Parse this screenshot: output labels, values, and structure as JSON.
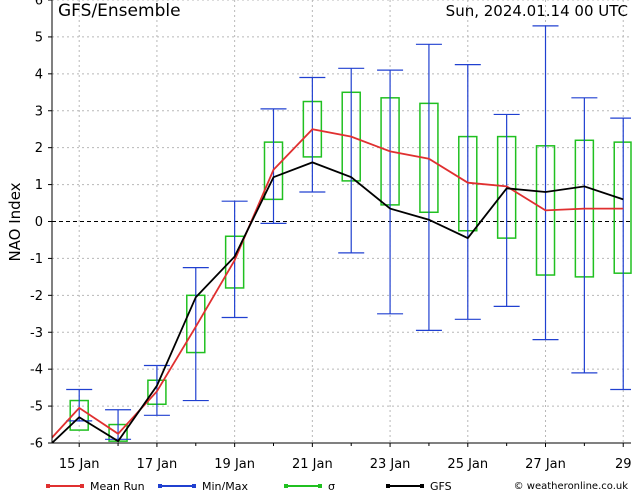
{
  "chart_data": {
    "type": "line",
    "title_left": "GFS/Ensemble",
    "title_right": "Sun, 2024.01.14   00 UTC",
    "ylabel": "NAO Index",
    "xlabel": "",
    "ylim": [
      -6,
      6
    ],
    "yticks": [
      -6,
      -5,
      -4,
      -3,
      -2,
      -1,
      0,
      1,
      2,
      3,
      4,
      5,
      6
    ],
    "xlim": [
      14.3,
      29.2
    ],
    "xticks": [
      {
        "x": 15,
        "label": "15 Jan"
      },
      {
        "x": 17,
        "label": "17 Jan"
      },
      {
        "x": 19,
        "label": "19 Jan"
      },
      {
        "x": 21,
        "label": "21 Jan"
      },
      {
        "x": 23,
        "label": "23 Jan"
      },
      {
        "x": 25,
        "label": "25 Jan"
      },
      {
        "x": 27,
        "label": "27 Jan"
      },
      {
        "x": 29,
        "label": "29"
      }
    ],
    "grid": true,
    "zero_line": "dashed",
    "x": [
      14,
      15,
      16,
      17,
      18,
      19,
      20,
      21,
      22,
      23,
      24,
      25,
      26,
      27,
      28,
      29
    ],
    "series": [
      {
        "name": "Mean Run",
        "color": "#e03030",
        "values": [
          -6.2,
          -5.05,
          -5.75,
          -4.6,
          -2.85,
          -1.05,
          1.4,
          2.5,
          2.3,
          1.9,
          1.7,
          1.05,
          0.95,
          0.3,
          0.35,
          0.35
        ]
      },
      {
        "name": "GFS",
        "color": "#000000",
        "values": [
          -6.3,
          -5.3,
          -5.95,
          -4.45,
          -2.05,
          -0.95,
          1.2,
          1.6,
          1.2,
          0.35,
          0.05,
          -0.45,
          0.9,
          0.8,
          0.95,
          0.6
        ]
      }
    ],
    "minmax": {
      "name": "Min/Max",
      "color": "#2040d0",
      "x": [
        15,
        16,
        17,
        18,
        19,
        20,
        21,
        22,
        23,
        24,
        25,
        26,
        27,
        28,
        29
      ],
      "min": [
        -5.4,
        -5.9,
        -5.25,
        -4.85,
        -2.6,
        -0.05,
        0.8,
        -0.85,
        -2.5,
        -2.95,
        -2.65,
        -2.3,
        -3.2,
        -4.1,
        -4.55
      ],
      "max": [
        -4.55,
        -5.1,
        -3.9,
        -1.25,
        0.55,
        3.05,
        3.9,
        4.15,
        4.1,
        4.8,
        4.25,
        2.9,
        5.3,
        3.35,
        2.8
      ]
    },
    "sigma": {
      "name": "σ",
      "color": "#20c020",
      "x": [
        15,
        16,
        17,
        18,
        19,
        20,
        21,
        22,
        23,
        24,
        25,
        26,
        27,
        28,
        29
      ],
      "low": [
        -5.65,
        -5.95,
        -4.95,
        -3.55,
        -1.8,
        0.6,
        1.75,
        1.1,
        0.45,
        0.25,
        -0.25,
        -0.45,
        -1.45,
        -1.5,
        -1.4
      ],
      "high": [
        -4.85,
        -5.5,
        -4.3,
        -2.0,
        -0.4,
        2.15,
        3.25,
        3.5,
        3.35,
        3.2,
        2.3,
        2.3,
        2.05,
        2.2,
        2.15
      ]
    },
    "legend": {
      "placement": "bottom",
      "entries": [
        {
          "name": "Mean Run",
          "color": "#e03030",
          "marker": "line"
        },
        {
          "name": "Min/Max",
          "color": "#2040d0",
          "marker": "line"
        },
        {
          "name": "σ",
          "color": "#20c020",
          "marker": "line"
        },
        {
          "name": "GFS",
          "color": "#000000",
          "marker": "line"
        }
      ]
    },
    "credit": "© weatheronline.co.uk"
  }
}
